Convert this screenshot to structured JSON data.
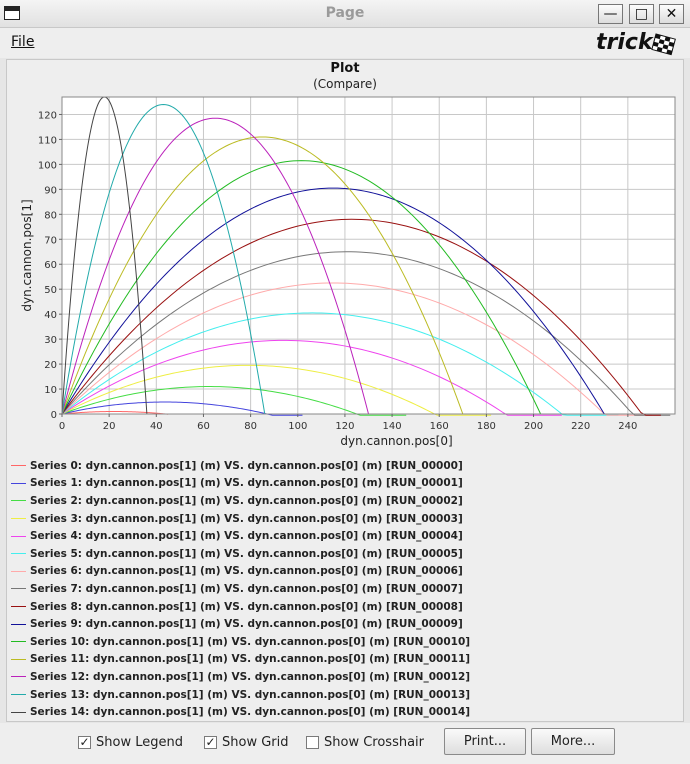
{
  "window": {
    "title": "Page"
  },
  "menu": {
    "file_label": "File"
  },
  "logo_text": "trick",
  "plot": {
    "title": "Plot",
    "subtitle": "(Compare)"
  },
  "chart_data": {
    "type": "line",
    "xlabel": "dyn.cannon.pos[0]",
    "ylabel": "dyn.cannon.pos[1]",
    "xlim": [
      0,
      260
    ],
    "ylim": [
      0,
      127
    ],
    "xticks": [
      0,
      20,
      40,
      60,
      80,
      100,
      120,
      140,
      160,
      180,
      200,
      220,
      240
    ],
    "yticks": [
      0,
      10,
      20,
      30,
      40,
      50,
      60,
      70,
      80,
      90,
      100,
      110,
      120
    ],
    "grid": true,
    "legend_position": "bottom",
    "series": [
      {
        "name": "Series 0: dyn.cannon.pos[1] (m) VS. dyn.cannon.pos[0] (m) [RUN_00000]",
        "color": "#ff6666",
        "range": 44,
        "height": 1.0,
        "x_end": 45
      },
      {
        "name": "Series 1: dyn.cannon.pos[1] (m) VS. dyn.cannon.pos[0] (m) [RUN_00001]",
        "color": "#4444dd",
        "range": 87,
        "height": 4.8,
        "x_end": 102
      },
      {
        "name": "Series 2: dyn.cannon.pos[1] (m) VS. dyn.cannon.pos[0] (m) [RUN_00002]",
        "color": "#44dd44",
        "range": 125,
        "height": 11,
        "x_end": 146
      },
      {
        "name": "Series 3: dyn.cannon.pos[1] (m) VS. dyn.cannon.pos[0] (m) [RUN_00003]",
        "color": "#eeee44",
        "range": 158,
        "height": 19.5,
        "x_end": 182
      },
      {
        "name": "Series 4: dyn.cannon.pos[1] (m) VS. dyn.cannon.pos[0] (m) [RUN_00004]",
        "color": "#ee44ee",
        "range": 188,
        "height": 29.5,
        "x_end": 212
      },
      {
        "name": "Series 5: dyn.cannon.pos[1] (m) VS. dyn.cannon.pos[0] (m) [RUN_00005]",
        "color": "#44eeee",
        "range": 212,
        "height": 40.5,
        "x_end": 236
      },
      {
        "name": "Series 6: dyn.cannon.pos[1] (m) VS. dyn.cannon.pos[0] (m) [RUN_00006]",
        "color": "#ffaaaa",
        "range": 230,
        "height": 52.5,
        "x_end": 250
      },
      {
        "name": "Series 7: dyn.cannon.pos[1] (m) VS. dyn.cannon.pos[0] (m) [RUN_00007]",
        "color": "#777777",
        "range": 242,
        "height": 65,
        "x_end": 258
      },
      {
        "name": "Series 8: dyn.cannon.pos[1] (m) VS. dyn.cannon.pos[0] (m) [RUN_00008]",
        "color": "#991111",
        "range": 246,
        "height": 78,
        "x_end": 254
      },
      {
        "name": "Series 9: dyn.cannon.pos[1] (m) VS. dyn.cannon.pos[0] (m) [RUN_00009]",
        "color": "#111199",
        "range": 230,
        "height": 90.5,
        "x_end": 230
      },
      {
        "name": "Series 10: dyn.cannon.pos[1] (m) VS. dyn.cannon.pos[0] (m) [RUN_00010]",
        "color": "#22bb22",
        "range": 203,
        "height": 101.5,
        "x_end": 203
      },
      {
        "name": "Series 11: dyn.cannon.pos[1] (m) VS. dyn.cannon.pos[0] (m) [RUN_00011]",
        "color": "#bbbb22",
        "range": 170,
        "height": 111,
        "x_end": 170
      },
      {
        "name": "Series 12: dyn.cannon.pos[1] (m) VS. dyn.cannon.pos[0] (m) [RUN_00012]",
        "color": "#bb22bb",
        "range": 130,
        "height": 118.5,
        "x_end": 130
      },
      {
        "name": "Series 13: dyn.cannon.pos[1] (m) VS. dyn.cannon.pos[0] (m) [RUN_00013]",
        "color": "#22aaaa",
        "range": 86,
        "height": 124,
        "x_end": 86
      },
      {
        "name": "Series 14: dyn.cannon.pos[1] (m) VS. dyn.cannon.pos[0] (m) [RUN_00014]",
        "color": "#444444",
        "range": 36,
        "height": 127,
        "x_end": 36
      }
    ]
  },
  "bottom": {
    "show_legend_label": "Show Legend",
    "show_legend_checked": true,
    "show_grid_label": "Show Grid",
    "show_grid_checked": true,
    "show_crosshair_label": "Show Crosshair",
    "show_crosshair_checked": false,
    "print_label": "Print...",
    "more_label": "More..."
  }
}
